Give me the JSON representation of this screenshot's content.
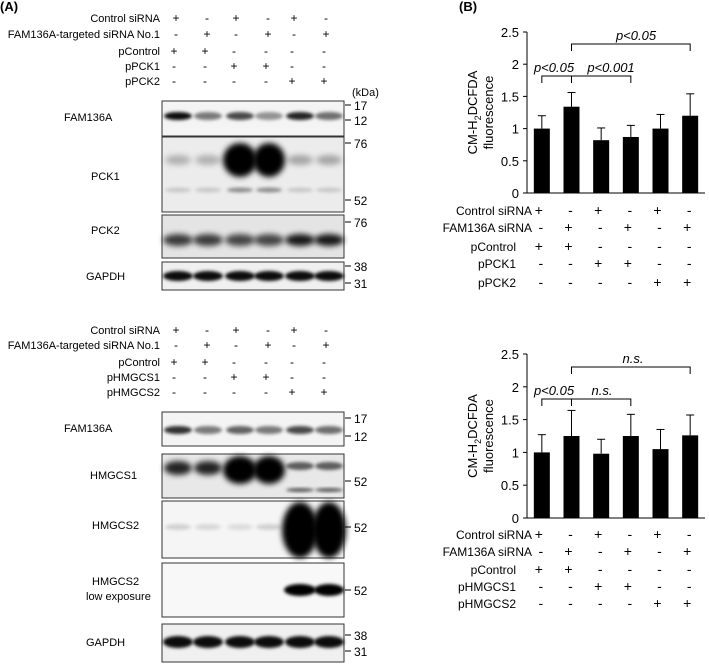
{
  "panelA": {
    "label": "(A)",
    "kda_label": "(kDa)",
    "block1": {
      "rows": [
        {
          "label": "Control siRNA",
          "signs": [
            "+",
            "-",
            "+",
            "-",
            "+",
            "-"
          ]
        },
        {
          "label": "FAM136A-targeted siRNA No.1",
          "signs": [
            "-",
            "+",
            "-",
            "+",
            "-",
            "+"
          ]
        },
        {
          "label": "pControl",
          "signs": [
            "+",
            "+",
            "-",
            "-",
            "-",
            "-"
          ]
        },
        {
          "label": "pPCK1",
          "signs": [
            "-",
            "-",
            "+",
            "+",
            "-",
            "-"
          ]
        },
        {
          "label": "pPCK2",
          "signs": [
            "-",
            "-",
            "-",
            "-",
            "+",
            "+"
          ]
        }
      ],
      "blots": [
        {
          "label": "FAM136A",
          "markers": [
            "17",
            "12"
          ]
        },
        {
          "label": "PCK1",
          "markers": [
            "76",
            "52"
          ]
        },
        {
          "label": "PCK2",
          "markers": [
            "76"
          ]
        },
        {
          "label": "GAPDH",
          "markers": [
            "38",
            "31"
          ]
        }
      ]
    },
    "block2": {
      "rows": [
        {
          "label": "Control siRNA",
          "signs": [
            "+",
            "-",
            "+",
            "-",
            "+",
            "-"
          ]
        },
        {
          "label": "FAM136A-targeted siRNA No.1",
          "signs": [
            "-",
            "+",
            "-",
            "+",
            "-",
            "+"
          ]
        },
        {
          "label": "pControl",
          "signs": [
            "+",
            "+",
            "-",
            "-",
            "-",
            "-"
          ]
        },
        {
          "label": "pHMGCS1",
          "signs": [
            "-",
            "-",
            "+",
            "+",
            "-",
            "-"
          ]
        },
        {
          "label": "pHMGCS2",
          "signs": [
            "-",
            "-",
            "-",
            "-",
            "+",
            "+"
          ]
        }
      ],
      "blots": [
        {
          "label": "FAM136A",
          "markers": [
            "17",
            "12"
          ]
        },
        {
          "label": "HMGCS1",
          "markers": [
            "52"
          ]
        },
        {
          "label": "HMGCS2",
          "markers": [
            "52"
          ]
        },
        {
          "label": "HMGCS2",
          "label2": "low exposure",
          "markers": [
            "52"
          ]
        },
        {
          "label": "GAPDH",
          "markers": [
            "38",
            "31"
          ]
        }
      ]
    }
  },
  "panelB": {
    "label": "(B)",
    "ylabel_line1_pre": "CM-H",
    "ylabel_line1_sub": "2",
    "ylabel_line1_post": "DCFDA",
    "ylabel_line2": "fluorescence"
  },
  "chart_data": [
    {
      "type": "bar",
      "categories": [
        "1",
        "2",
        "3",
        "4",
        "5",
        "6"
      ],
      "values": [
        1.0,
        1.34,
        0.82,
        0.87,
        1.0,
        1.2
      ],
      "errors": [
        0.2,
        0.22,
        0.19,
        0.18,
        0.22,
        0.34
      ],
      "ylim": [
        0,
        2.5
      ],
      "yticks": [
        "0",
        "0.5",
        "1",
        "1.5",
        "2",
        "2.5"
      ],
      "annotations": [
        {
          "pair": [
            1,
            2
          ],
          "text": "p<0.05"
        },
        {
          "pair": [
            2,
            4
          ],
          "text": "p<0.001"
        },
        {
          "pair": [
            2,
            6
          ],
          "text": "p<0.05"
        }
      ],
      "rows": [
        {
          "label": "Control siRNA",
          "signs": [
            "+",
            "-",
            "+",
            "-",
            "+",
            "-"
          ]
        },
        {
          "label": "FAM136A siRNA",
          "signs": [
            "-",
            "+",
            "-",
            "+",
            "-",
            "+"
          ]
        },
        {
          "label": "pControl",
          "signs": [
            "+",
            "+",
            "-",
            "-",
            "-",
            "-"
          ]
        },
        {
          "label": "pPCK1",
          "signs": [
            "-",
            "-",
            "+",
            "+",
            "-",
            "-"
          ]
        },
        {
          "label": "pPCK2",
          "signs": [
            "-",
            "-",
            "-",
            "-",
            "+",
            "+"
          ]
        }
      ]
    },
    {
      "type": "bar",
      "categories": [
        "1",
        "2",
        "3",
        "4",
        "5",
        "6"
      ],
      "values": [
        1.0,
        1.25,
        0.98,
        1.25,
        1.05,
        1.26
      ],
      "errors": [
        0.27,
        0.39,
        0.22,
        0.33,
        0.3,
        0.31
      ],
      "ylim": [
        0,
        2.5
      ],
      "yticks": [
        "0",
        "0.5",
        "1",
        "1.5",
        "2",
        "2.5"
      ],
      "annotations": [
        {
          "pair": [
            1,
            2
          ],
          "text": "p<0.05"
        },
        {
          "pair": [
            2,
            4
          ],
          "text": "n.s."
        },
        {
          "pair": [
            2,
            6
          ],
          "text": "n.s."
        }
      ],
      "rows": [
        {
          "label": "Control siRNA",
          "signs": [
            "+",
            "-",
            "+",
            "-",
            "+",
            "-"
          ]
        },
        {
          "label": "FAM136A siRNA",
          "signs": [
            "-",
            "+",
            "-",
            "+",
            "-",
            "+"
          ]
        },
        {
          "label": "pControl",
          "signs": [
            "+",
            "+",
            "-",
            "-",
            "-",
            "-"
          ]
        },
        {
          "label": "pHMGCS1",
          "signs": [
            "-",
            "-",
            "+",
            "+",
            "-",
            "-"
          ]
        },
        {
          "label": "pHMGCS2",
          "signs": [
            "-",
            "-",
            "-",
            "-",
            "+",
            "+"
          ]
        }
      ]
    }
  ]
}
